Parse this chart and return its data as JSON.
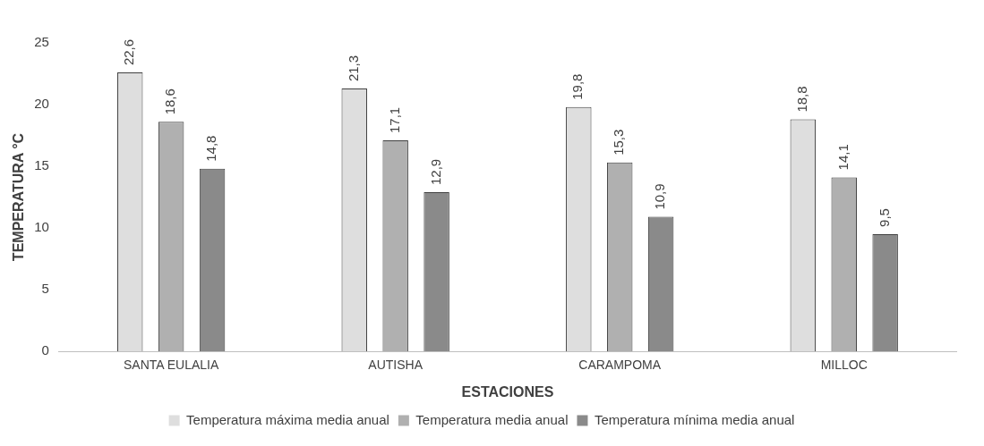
{
  "chart_data": {
    "type": "bar",
    "xlabel": "ESTACIONES",
    "ylabel": "TEMPERATURA °C",
    "categories": [
      "SANTA EULALIA",
      "AUTISHA",
      "CARAMPOMA",
      "MILLOC"
    ],
    "ylim": [
      0,
      25
    ],
    "yticks": [
      0,
      5,
      10,
      15,
      20,
      25
    ],
    "legend": "bottom",
    "series": [
      {
        "name": "Temperatura máxima media anual",
        "color": "#dedede",
        "values": [
          22.6,
          21.3,
          19.8,
          18.8
        ],
        "value_labels": [
          "22,6",
          "21,3",
          "19,8",
          "18,8"
        ]
      },
      {
        "name": "Temperatura media anual",
        "color": "#b0b0b0",
        "values": [
          18.6,
          17.1,
          15.3,
          14.1
        ],
        "value_labels": [
          "18,6",
          "17,1",
          "15,3",
          "14,1"
        ]
      },
      {
        "name": "Temperatura mínima media anual",
        "color": "#8a8a8a",
        "values": [
          14.8,
          12.9,
          10.9,
          9.5
        ],
        "value_labels": [
          "14,8",
          "12,9",
          "10,9",
          "9,5"
        ]
      }
    ]
  }
}
